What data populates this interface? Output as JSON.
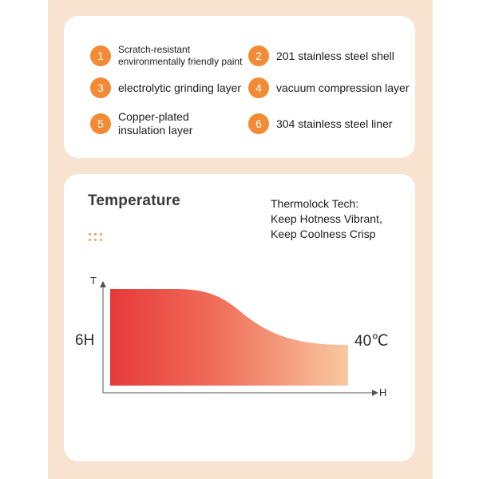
{
  "features": [
    {
      "num": "1",
      "text": "Scratch-resistant\nenvironmentally friendly paint"
    },
    {
      "num": "2",
      "text": "201 stainless steel shell"
    },
    {
      "num": "3",
      "text": "electrolytic grinding layer"
    },
    {
      "num": "4",
      "text": "vacuum compression layer"
    },
    {
      "num": "5",
      "text": "Copper-plated\ninsulation layer"
    },
    {
      "num": "6",
      "text": "304 stainless steel liner"
    }
  ],
  "temperature": {
    "title": "Temperature",
    "tagline": "Thermolock Tech:\nKeep Hotness Vibrant,\nKeep Coolness Crisp",
    "y_axis_label": "T",
    "x_axis_label": "H",
    "left_label": "6H",
    "right_label": "40℃"
  },
  "colors": {
    "badge": "#f28a36",
    "gradient_start": "#e63a3a",
    "gradient_end": "#f8c9a0",
    "backdrop": "#f7e3cf"
  }
}
